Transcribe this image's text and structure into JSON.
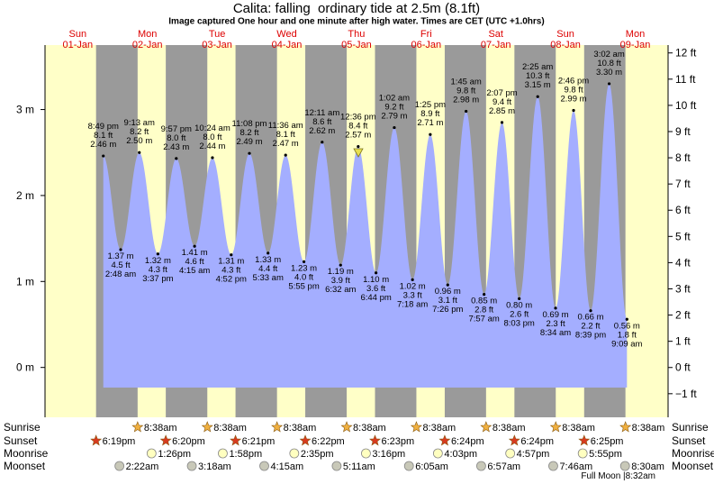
{
  "chart_data": {
    "type": "tide",
    "title": "Calita: falling  ordinary tide at 2.5m (8.1ft)",
    "subtitle": "Image captured One hour and one minute after high water. Times are CET (UTC +1.0hrs)",
    "ylim": [
      -0.58,
      3.75
    ],
    "yticks": [
      {
        "value": 0,
        "label": "0 m"
      },
      {
        "value": 1,
        "label": "1 m"
      },
      {
        "value": 2,
        "label": "2 m"
      },
      {
        "value": 3,
        "label": "3 m"
      }
    ],
    "y2lim": [
      -1.9,
      12.3
    ],
    "y2ticks": [
      {
        "value": -1,
        "label": "−1 ft"
      },
      {
        "value": 0,
        "label": "0 ft"
      },
      {
        "value": 1,
        "label": "1 ft"
      },
      {
        "value": 2,
        "label": "2 ft"
      },
      {
        "value": 3,
        "label": "3 ft"
      },
      {
        "value": 4,
        "label": "4 ft"
      },
      {
        "value": 5,
        "label": "5 ft"
      },
      {
        "value": 6,
        "label": "6 ft"
      },
      {
        "value": 7,
        "label": "7 ft"
      },
      {
        "value": 8,
        "label": "8 ft"
      },
      {
        "value": 9,
        "label": "9 ft"
      },
      {
        "value": 10,
        "label": "10 ft"
      },
      {
        "value": 11,
        "label": "11 ft"
      },
      {
        "value": 12,
        "label": "12 ft"
      }
    ],
    "water_color": "#a4aeff",
    "night_color": "#9a9a9a",
    "day_color": "#ffffc8",
    "rows": {
      "sunrise": "Sunrise",
      "sunset": "Sunset",
      "moonrise": "Moonrise",
      "moonset": "Moonset"
    },
    "moon_phase": "Full Moon |8:32am",
    "days": [
      {
        "name": "Sun",
        "date": "01-Jan",
        "sunset": "6:19pm",
        "tides": [
          {
            "time": "8:49 pm",
            "ft": "8.1 ft",
            "m": 2.46,
            "m_label": "2.46 m"
          }
        ]
      },
      {
        "name": "Mon",
        "date": "02-Jan",
        "sunrise": "8:38am",
        "sunset": "6:20pm",
        "moonrise": "1:26pm",
        "moonset": "2:22am",
        "tides": [
          {
            "time": "2:48 am",
            "ft": "4.5 ft",
            "m": 1.37,
            "m_label": "1.37 m"
          },
          {
            "time": "9:13 am",
            "ft": "8.2 ft",
            "m": 2.5,
            "m_label": "2.50 m"
          },
          {
            "time": "3:37 pm",
            "ft": "4.3 ft",
            "m": 1.32,
            "m_label": "1.32 m"
          },
          {
            "time": "9:57 pm",
            "ft": "8.0 ft",
            "m": 2.43,
            "m_label": "2.43 m"
          }
        ]
      },
      {
        "name": "Tue",
        "date": "03-Jan",
        "sunrise": "8:38am",
        "sunset": "6:21pm",
        "moonrise": "1:58pm",
        "moonset": "3:18am",
        "tides": [
          {
            "time": "4:15 am",
            "ft": "4.6 ft",
            "m": 1.41,
            "m_label": "1.41 m"
          },
          {
            "time": "10:24 am",
            "ft": "8.0 ft",
            "m": 2.44,
            "m_label": "2.44 m"
          },
          {
            "time": "4:52 pm",
            "ft": "4.3 ft",
            "m": 1.31,
            "m_label": "1.31 m"
          },
          {
            "time": "11:08 pm",
            "ft": "8.2 ft",
            "m": 2.49,
            "m_label": "2.49 m"
          }
        ]
      },
      {
        "name": "Wed",
        "date": "04-Jan",
        "sunrise": "8:38am",
        "sunset": "6:22pm",
        "moonrise": "2:35pm",
        "moonset": "4:15am",
        "tides": [
          {
            "time": "5:33 am",
            "ft": "4.4 ft",
            "m": 1.33,
            "m_label": "1.33 m"
          },
          {
            "time": "11:36 am",
            "ft": "8.1 ft",
            "m": 2.47,
            "m_label": "2.47 m"
          },
          {
            "time": "5:55 pm",
            "ft": "4.0 ft",
            "m": 1.23,
            "m_label": "1.23 m"
          }
        ]
      },
      {
        "name": "Thu",
        "date": "05-Jan",
        "sunrise": "8:38am",
        "sunset": "6:23pm",
        "moonrise": "3:16pm",
        "moonset": "5:11am",
        "tides": [
          {
            "time": "12:11 am",
            "ft": "8.6 ft",
            "m": 2.62,
            "m_label": "2.62 m"
          },
          {
            "time": "6:32 am",
            "ft": "3.9 ft",
            "m": 1.19,
            "m_label": "1.19 m"
          },
          {
            "time": "12:36 pm",
            "ft": "8.4 ft",
            "m": 2.57,
            "m_label": "2.57 m"
          },
          {
            "time": "6:44 pm",
            "ft": "3.6 ft",
            "m": 1.1,
            "m_label": "1.10 m"
          }
        ]
      },
      {
        "name": "Fri",
        "date": "06-Jan",
        "sunrise": "8:38am",
        "sunset": "6:24pm",
        "moonrise": "4:03pm",
        "moonset": "6:05am",
        "tides": [
          {
            "time": "1:02 am",
            "ft": "9.2 ft",
            "m": 2.79,
            "m_label": "2.79 m"
          },
          {
            "time": "7:18 am",
            "ft": "3.3 ft",
            "m": 1.02,
            "m_label": "1.02 m"
          },
          {
            "time": "1:25 pm",
            "ft": "8.9 ft",
            "m": 2.71,
            "m_label": "2.71 m"
          },
          {
            "time": "7:26 pm",
            "ft": "3.1 ft",
            "m": 0.96,
            "m_label": "0.96 m"
          }
        ]
      },
      {
        "name": "Sat",
        "date": "07-Jan",
        "sunrise": "8:38am",
        "sunset": "6:24pm",
        "moonrise": "4:57pm",
        "moonset": "6:57am",
        "tides": [
          {
            "time": "1:45 am",
            "ft": "9.8 ft",
            "m": 2.98,
            "m_label": "2.98 m"
          },
          {
            "time": "7:57 am",
            "ft": "2.8 ft",
            "m": 0.85,
            "m_label": "0.85 m"
          },
          {
            "time": "2:07 pm",
            "ft": "9.4 ft",
            "m": 2.85,
            "m_label": "2.85 m"
          },
          {
            "time": "8:03 pm",
            "ft": "2.6 ft",
            "m": 0.8,
            "m_label": "0.80 m"
          }
        ]
      },
      {
        "name": "Sun",
        "date": "08-Jan",
        "sunrise": "8:38am",
        "sunset": "6:25pm",
        "moonrise": "5:55pm",
        "moonset": "7:46am",
        "tides": [
          {
            "time": "2:25 am",
            "ft": "10.3 ft",
            "m": 3.15,
            "m_label": "3.15 m"
          },
          {
            "time": "8:34 am",
            "ft": "2.3 ft",
            "m": 0.69,
            "m_label": "0.69 m"
          },
          {
            "time": "2:46 pm",
            "ft": "9.8 ft",
            "m": 2.99,
            "m_label": "2.99 m"
          },
          {
            "time": "8:39 pm",
            "ft": "2.2 ft",
            "m": 0.66,
            "m_label": "0.66 m"
          }
        ]
      },
      {
        "name": "Mon",
        "date": "09-Jan",
        "sunrise": "8:38am",
        "moonset": "8:30am",
        "tides": [
          {
            "time": "3:02 am",
            "ft": "10.8 ft",
            "m": 3.3,
            "m_label": "3.30 m"
          },
          {
            "time": "9:09 am",
            "ft": "1.8 ft",
            "m": 0.56,
            "m_label": "0.56 m"
          }
        ]
      }
    ]
  }
}
